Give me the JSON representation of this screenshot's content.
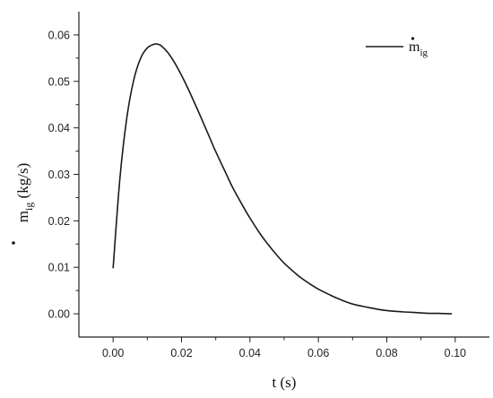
{
  "chart_data": {
    "type": "line",
    "title": "",
    "xlabel": "t (s)",
    "ylabel": "ṁig (kg/s)",
    "ylabel_parts": {
      "symbol": "m",
      "subscript": "ig",
      "unit": "(kg/s)"
    },
    "xlim": [
      -0.01,
      0.11
    ],
    "ylim": [
      -0.005,
      0.065
    ],
    "x_ticks": [
      0.0,
      0.02,
      0.04,
      0.06,
      0.08,
      0.1
    ],
    "x_tick_labels": [
      "0.00",
      "0.02",
      "0.04",
      "0.06",
      "0.08",
      "0.10"
    ],
    "y_ticks": [
      0.0,
      0.01,
      0.02,
      0.03,
      0.04,
      0.05,
      0.06
    ],
    "y_tick_labels": [
      "0.00",
      "0.01",
      "0.02",
      "0.03",
      "0.04",
      "0.05",
      "0.06"
    ],
    "grid": false,
    "legend_position": "top-right",
    "series": [
      {
        "name": "ṁig",
        "name_parts": {
          "symbol": "m",
          "subscript": "ig"
        },
        "color": "#1a1a1a",
        "x": [
          0.0,
          0.002,
          0.004,
          0.006,
          0.008,
          0.01,
          0.012,
          0.013,
          0.014,
          0.016,
          0.018,
          0.02,
          0.022,
          0.025,
          0.028,
          0.03,
          0.033,
          0.035,
          0.038,
          0.04,
          0.043,
          0.045,
          0.048,
          0.05,
          0.053,
          0.055,
          0.058,
          0.06,
          0.063,
          0.065,
          0.068,
          0.07,
          0.073,
          0.075,
          0.078,
          0.08,
          0.083,
          0.085,
          0.088,
          0.09,
          0.093,
          0.095,
          0.099
        ],
        "y": [
          0.0098,
          0.0292,
          0.0421,
          0.0502,
          0.0549,
          0.0572,
          0.058,
          0.058,
          0.0577,
          0.0562,
          0.054,
          0.0513,
          0.0483,
          0.0434,
          0.0383,
          0.0349,
          0.0302,
          0.0271,
          0.0231,
          0.0206,
          0.0172,
          0.0152,
          0.0125,
          0.0109,
          0.0089,
          0.0077,
          0.0062,
          0.0053,
          0.0042,
          0.0035,
          0.0026,
          0.0021,
          0.0016,
          0.0013,
          0.0009,
          0.0007,
          0.0005,
          0.0004,
          0.0003,
          0.0002,
          0.0001,
          0.0001,
          0.0
        ]
      }
    ]
  }
}
